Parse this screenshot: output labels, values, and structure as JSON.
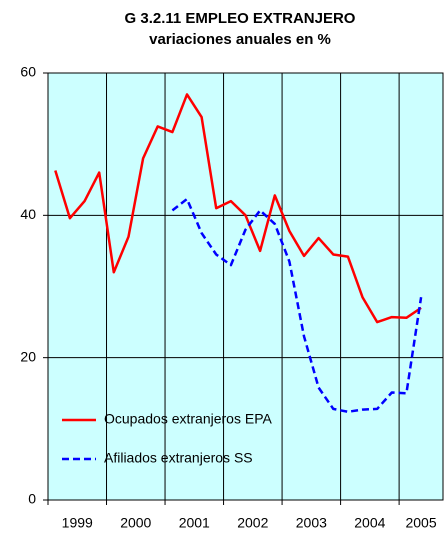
{
  "chart_data": {
    "type": "line",
    "title": "G 3.2.11 EMPLEO  EXTRANJERO",
    "subtitle": "variaciones anuales en %",
    "categories": [
      "1999",
      null,
      null,
      null,
      "2000",
      null,
      null,
      null,
      "2001",
      null,
      null,
      null,
      "2002",
      null,
      null,
      null,
      "2003",
      null,
      null,
      null,
      "2004",
      null,
      null,
      null,
      "2005",
      null,
      null
    ],
    "series": [
      {
        "name": "Ocupados extranjeros EPA",
        "color": "#ff0000",
        "dash": false,
        "values": [
          46.3,
          39.6,
          42,
          46,
          32,
          37,
          48,
          52.5,
          51.7,
          57,
          53.8,
          41,
          42,
          40,
          35,
          42.8,
          37.8,
          34.3,
          36.8,
          34.5,
          34.2,
          28.5,
          25,
          25.7,
          25.6,
          27,
          null
        ]
      },
      {
        "name": "Afiliados extranjeros SS",
        "color": "#0000ff",
        "dash": true,
        "values": [
          null,
          null,
          null,
          null,
          null,
          null,
          null,
          null,
          40.7,
          42.3,
          37.5,
          34.5,
          33,
          38,
          40.7,
          38.8,
          33.5,
          23,
          15.8,
          12.8,
          12.4,
          12.7,
          12.8,
          15.1,
          15,
          28.5,
          null
        ]
      }
    ],
    "ylim": [
      0,
      60
    ],
    "yticks": [
      0,
      20,
      40,
      60
    ],
    "grid": true,
    "legend": "lower left",
    "plot_background": "#ccffff"
  }
}
